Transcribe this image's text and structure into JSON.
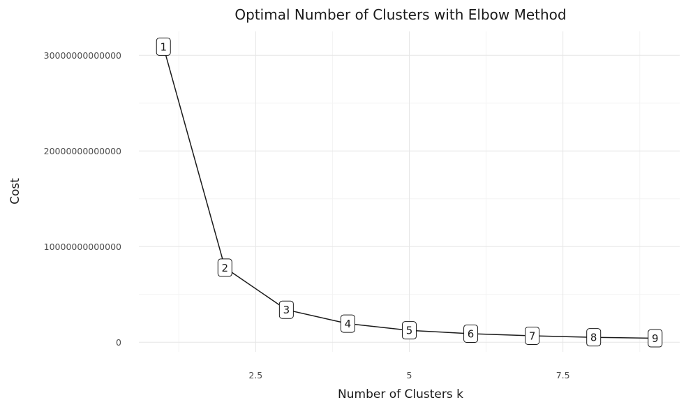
{
  "chart_data": {
    "type": "line",
    "title": "Optimal Number of Clusters with Elbow Method",
    "xlabel": "Number of Clusters k",
    "ylabel": "Cost",
    "x": [
      1,
      2,
      3,
      4,
      5,
      6,
      7,
      8,
      9
    ],
    "series": [
      {
        "values": [
          30900000000000,
          7800000000000,
          3400000000000,
          1950000000000,
          1250000000000,
          900000000000,
          680000000000,
          520000000000,
          420000000000
        ]
      }
    ],
    "data_labels": [
      "1",
      "2",
      "3",
      "4",
      "5",
      "6",
      "7",
      "8",
      "9"
    ],
    "x_ticks": [
      2.5,
      5,
      7.5
    ],
    "x_tick_labels": [
      "2.5",
      "5",
      "7.5"
    ],
    "y_ticks": [
      0,
      10000000000000,
      20000000000000,
      30000000000000
    ],
    "y_tick_labels": [
      "0",
      "10000000000000",
      "20000000000000",
      "30000000000000"
    ],
    "xlim": [
      0.6,
      9.4
    ],
    "ylim": [
      -1000000000000,
      32500000000000
    ],
    "grid": true,
    "legend": "none",
    "colors": {
      "line": "#1a1a1a",
      "grid_major": "#e6e6e6",
      "grid_minor": "#f3f3f3",
      "label_fill": "#ffffff"
    }
  }
}
